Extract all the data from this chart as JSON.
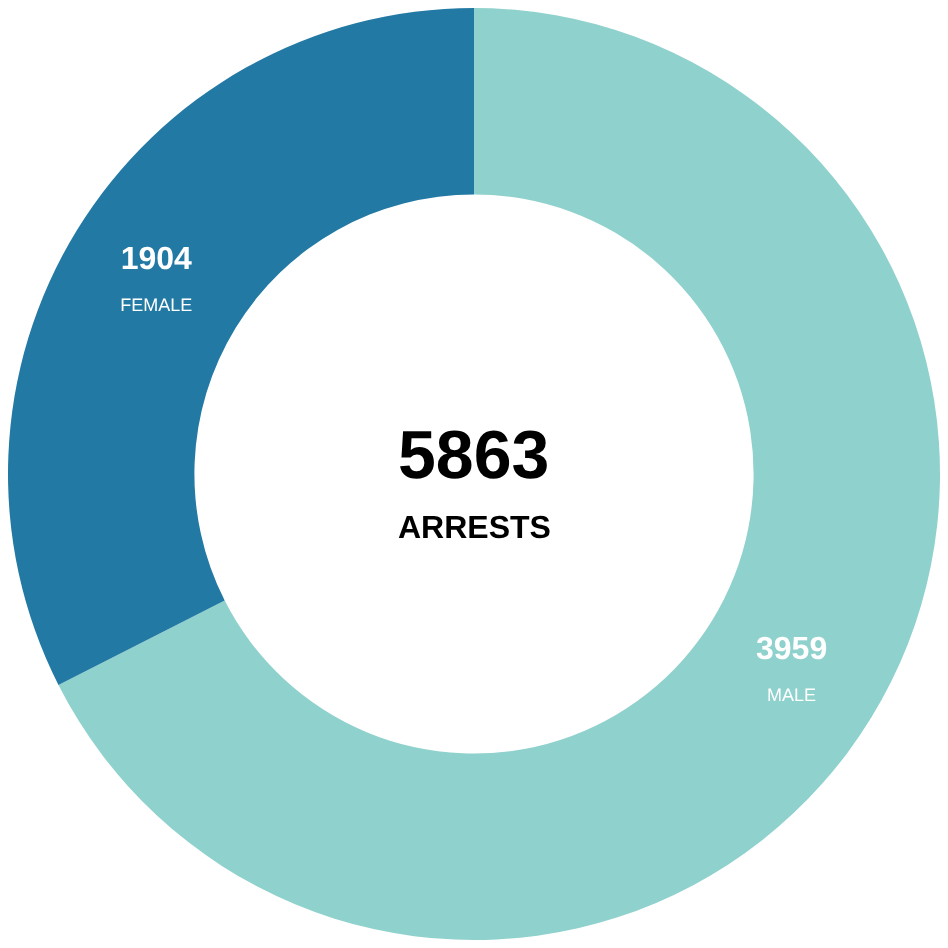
{
  "chart_data": {
    "type": "donut",
    "categories": [
      "MALE",
      "FEMALE"
    ],
    "values": [
      3959,
      1904
    ],
    "colors": [
      "#8fd1cc",
      "#2279a4"
    ],
    "data_labels": true,
    "legend": false,
    "annotations": [
      "5863",
      "ARRESTS"
    ]
  }
}
